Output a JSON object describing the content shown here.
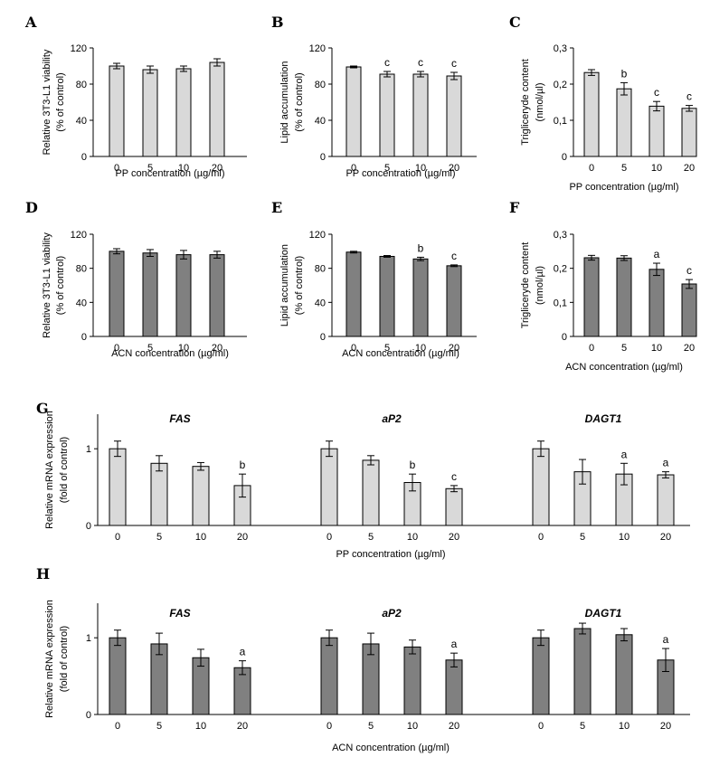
{
  "chart_data": [
    {
      "id": "A",
      "type": "bar",
      "panel_label": "A",
      "categories": [
        "0",
        "5",
        "10",
        "20"
      ],
      "values": [
        100,
        96,
        97,
        104
      ],
      "errors": [
        3,
        4,
        3,
        4
      ],
      "significance": [
        "",
        "",
        "",
        ""
      ],
      "ylabel": [
        "Relative 3T3-L1 viability",
        "(% of control)"
      ],
      "xlabel": "PP concentration (µg/ml)",
      "ylim": [
        0,
        120
      ],
      "yticks": [
        "0",
        "40",
        "80",
        "120"
      ],
      "ytick_values": [
        0,
        40,
        80,
        120
      ],
      "bar_color": "#d9d9d9"
    },
    {
      "id": "B",
      "type": "bar",
      "panel_label": "B",
      "categories": [
        "0",
        "5",
        "10",
        "20"
      ],
      "values": [
        99,
        91,
        91,
        89
      ],
      "errors": [
        1,
        3,
        3,
        4
      ],
      "significance": [
        "",
        "c",
        "c",
        "c"
      ],
      "ylabel": [
        "Lipid accumulation",
        "(% of control)"
      ],
      "xlabel": "PP concentration (µg/ml)",
      "ylim": [
        0,
        120
      ],
      "yticks": [
        "0",
        "40",
        "80",
        "120"
      ],
      "ytick_values": [
        0,
        40,
        80,
        120
      ],
      "bar_color": "#d9d9d9"
    },
    {
      "id": "C",
      "type": "bar",
      "panel_label": "C",
      "categories": [
        "0",
        "5",
        "10",
        "20"
      ],
      "values": [
        0.232,
        0.187,
        0.139,
        0.133
      ],
      "errors": [
        0.008,
        0.017,
        0.013,
        0.008
      ],
      "significance": [
        "",
        "b",
        "c",
        "c"
      ],
      "ylabel": [
        "Trigliceryde content",
        "(nmol/µl)"
      ],
      "xlabel": "PP concentration (µg/ml)",
      "ylim": [
        0,
        0.3
      ],
      "yticks": [
        "0",
        "0,1",
        "0,2",
        "0,3"
      ],
      "ytick_values": [
        0,
        0.1,
        0.2,
        0.3
      ],
      "bar_color": "#d9d9d9"
    },
    {
      "id": "D",
      "type": "bar",
      "panel_label": "D",
      "categories": [
        "0",
        "5",
        "10",
        "20"
      ],
      "values": [
        100,
        98,
        96,
        96
      ],
      "errors": [
        3,
        4,
        5,
        4
      ],
      "significance": [
        "",
        "",
        "",
        ""
      ],
      "ylabel": [
        "Relative 3T3-L1 viability",
        "(% of control)"
      ],
      "xlabel": "ACN concentration (µg/ml)",
      "ylim": [
        0,
        120
      ],
      "yticks": [
        "0",
        "40",
        "80",
        "120"
      ],
      "ytick_values": [
        0,
        40,
        80,
        120
      ],
      "bar_color": "#808080"
    },
    {
      "id": "E",
      "type": "bar",
      "panel_label": "E",
      "categories": [
        "0",
        "5",
        "10",
        "20"
      ],
      "values": [
        99,
        94,
        91,
        83
      ],
      "errors": [
        1,
        1,
        2,
        1
      ],
      "significance": [
        "",
        "",
        "b",
        "c"
      ],
      "ylabel": [
        "Lipid accumulation",
        "(% of control)"
      ],
      "xlabel": "ACN concentration (µg/ml)",
      "ylim": [
        0,
        120
      ],
      "yticks": [
        "0",
        "40",
        "80",
        "120"
      ],
      "ytick_values": [
        0,
        40,
        80,
        120
      ],
      "bar_color": "#808080"
    },
    {
      "id": "F",
      "type": "bar",
      "panel_label": "F",
      "categories": [
        "0",
        "5",
        "10",
        "20"
      ],
      "values": [
        0.231,
        0.23,
        0.197,
        0.154
      ],
      "errors": [
        0.007,
        0.007,
        0.018,
        0.013
      ],
      "significance": [
        "",
        "",
        "a",
        "c"
      ],
      "ylabel": [
        "Trigliceryde content",
        "(nmol/µl)"
      ],
      "xlabel": "ACN concentration (µg/ml)",
      "ylim": [
        0,
        0.3
      ],
      "yticks": [
        "0",
        "0,1",
        "0,2",
        "0,3"
      ],
      "ytick_values": [
        0,
        0.1,
        0.2,
        0.3
      ],
      "bar_color": "#808080"
    },
    {
      "id": "G",
      "type": "bar",
      "panel_label": "G",
      "groups": [
        {
          "name": "FAS",
          "categories": [
            "0",
            "5",
            "10",
            "20"
          ],
          "values": [
            1.0,
            0.81,
            0.77,
            0.52
          ],
          "errors": [
            0.1,
            0.1,
            0.05,
            0.15
          ],
          "significance": [
            "",
            "",
            "",
            "b"
          ]
        },
        {
          "name": "aP2",
          "categories": [
            "0",
            "5",
            "10",
            "20"
          ],
          "values": [
            1.0,
            0.85,
            0.56,
            0.48
          ],
          "errors": [
            0.1,
            0.06,
            0.11,
            0.04
          ],
          "significance": [
            "",
            "",
            "b",
            "c"
          ]
        },
        {
          "name": "DAGT1",
          "categories": [
            "0",
            "5",
            "10",
            "20"
          ],
          "values": [
            1.0,
            0.7,
            0.67,
            0.66
          ],
          "errors": [
            0.1,
            0.16,
            0.14,
            0.04
          ],
          "significance": [
            "",
            "",
            "a",
            "a"
          ]
        }
      ],
      "ylabel": [
        "Relative mRNA expression",
        "(fold of control)"
      ],
      "xlabel": "PP concentration (µg/ml)",
      "ylim": [
        0,
        1.45
      ],
      "yticks": [
        "0",
        "1"
      ],
      "ytick_values": [
        0,
        1
      ],
      "bar_color": "#d9d9d9"
    },
    {
      "id": "H",
      "type": "bar",
      "panel_label": "H",
      "groups": [
        {
          "name": "FAS",
          "categories": [
            "0",
            "5",
            "10",
            "20"
          ],
          "values": [
            1.0,
            0.92,
            0.74,
            0.61
          ],
          "errors": [
            0.1,
            0.14,
            0.11,
            0.09
          ],
          "significance": [
            "",
            "",
            "",
            "a"
          ]
        },
        {
          "name": "aP2",
          "categories": [
            "0",
            "5",
            "10",
            "20"
          ],
          "values": [
            1.0,
            0.92,
            0.88,
            0.71
          ],
          "errors": [
            0.1,
            0.14,
            0.09,
            0.09
          ],
          "significance": [
            "",
            "",
            "",
            "a"
          ]
        },
        {
          "name": "DAGT1",
          "categories": [
            "0",
            "5",
            "10",
            "20"
          ],
          "values": [
            1.0,
            1.12,
            1.04,
            0.71
          ],
          "errors": [
            0.1,
            0.07,
            0.08,
            0.15
          ],
          "significance": [
            "",
            "",
            "",
            "a"
          ]
        }
      ],
      "ylabel": [
        "Relative mRNA expression",
        "(fold of control)"
      ],
      "xlabel": "ACN concentration (µg/ml)",
      "ylim": [
        0,
        1.45
      ],
      "yticks": [
        "0",
        "1"
      ],
      "ytick_values": [
        0,
        1
      ],
      "bar_color": "#808080"
    }
  ]
}
